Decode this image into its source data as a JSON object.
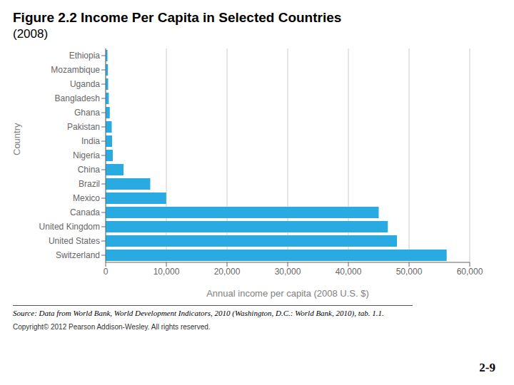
{
  "chart_data": {
    "type": "bar",
    "orientation": "horizontal",
    "title": "Figure 2.2  Income Per Capita in Selected Countries",
    "subtitle": "(2008)",
    "xlabel": "Annual income per capita (2008 U.S. $)",
    "ylabel": "Country",
    "categories": [
      "Ethiopia",
      "Mozambique",
      "Uganda",
      "Bangladesh",
      "Ghana",
      "Pakistan",
      "India",
      "Nigeria",
      "China",
      "Brazil",
      "Mexico",
      "Canada",
      "United Kingdom",
      "United States",
      "Switzerland"
    ],
    "values": [
      300,
      380,
      410,
      520,
      680,
      1000,
      1060,
      1180,
      2940,
      7350,
      9980,
      45000,
      46500,
      48000,
      56200
    ],
    "color": "#29abe2",
    "xlim": [
      0,
      60000
    ],
    "xticks": [
      0,
      {
        "value": 10000,
        "label": "10,000"
      },
      {
        "value": 20000,
        "label": "20,000"
      },
      {
        "value": 30000,
        "label": "30,000"
      },
      {
        "value": 40000,
        "label": "40,000"
      },
      {
        "value": 50000,
        "label": "50,000"
      },
      {
        "value": 60000,
        "label": "60,000"
      }
    ],
    "grid": true,
    "annotations": [
      "Source: Data from World Bank, World Development Indicators, 2010 (Washington, D.C.: World Bank, 2010), tab. 1.1.",
      "Copyright© 2012 Pearson Addison-Wesley. All rights reserved.",
      "2-9"
    ]
  }
}
